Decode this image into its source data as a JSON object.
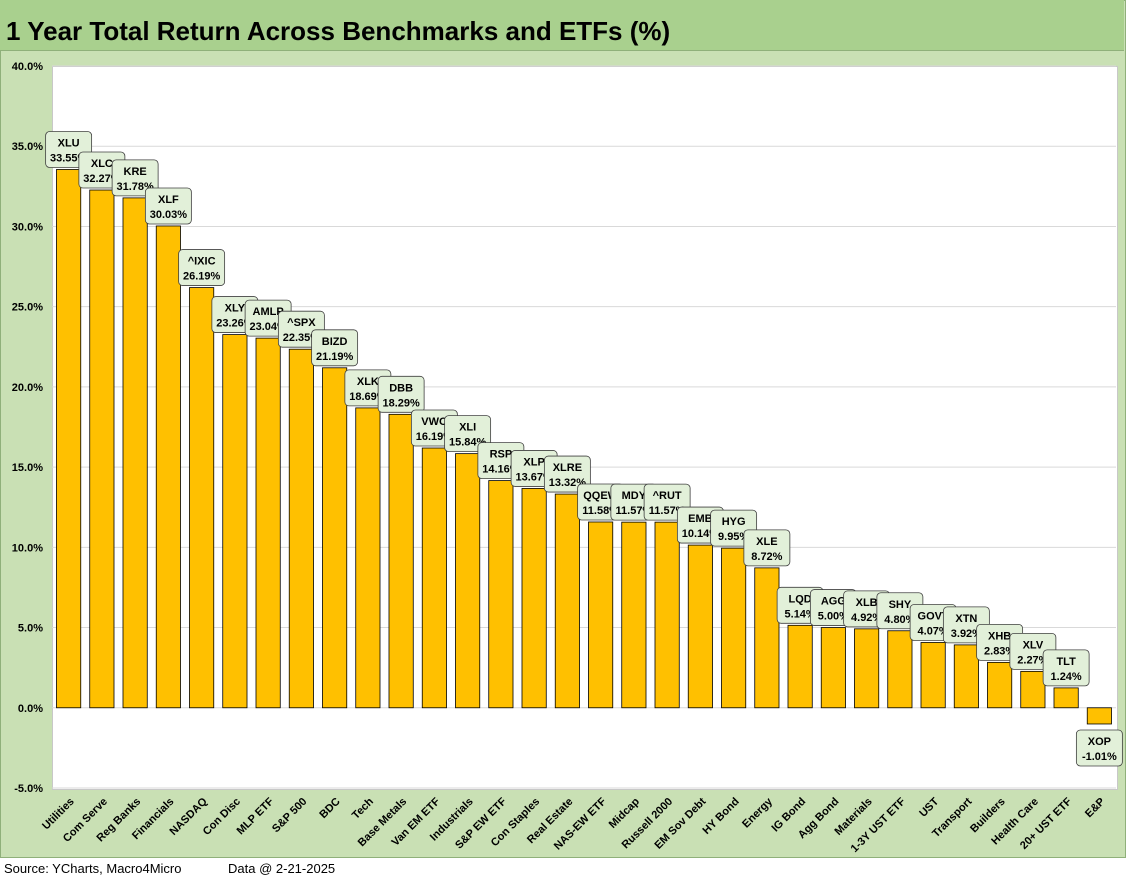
{
  "footer": {
    "source": "Source: YCharts, Macro4Micro",
    "data_date": "Data @ 2-21-2025"
  },
  "chart_data": {
    "type": "bar",
    "title": "1 Year Total Return Across Benchmarks and ETFs (%)",
    "xlabel": "",
    "ylabel": "",
    "ylim": [
      -5,
      40
    ],
    "yticks": [
      "-5.0%",
      "0.0%",
      "5.0%",
      "10.0%",
      "15.0%",
      "20.0%",
      "25.0%",
      "30.0%",
      "35.0%",
      "40.0%"
    ],
    "grid": true,
    "legend": "none",
    "bar_color": "#ffc000",
    "label_box_color": "#e2f0d9",
    "categories": [
      "Utilities",
      "Com Serve",
      "Reg Banks",
      "Financials",
      "NASDAQ",
      "Con Disc",
      "MLP ETF",
      "S&P 500",
      "BDC",
      "Tech",
      "Base Metals",
      "Van EM ETF",
      "Industrials",
      "S&P EW ETF",
      "Con Staples",
      "Real Estate",
      "NAS-EW ETF",
      "Midcap",
      "Russell 2000",
      "EM Sov Debt",
      "HY Bond",
      "Energy",
      "IG Bond",
      "Agg Bond",
      "Materials",
      "1-3Y UST ETF",
      "UST",
      "Transport",
      "Builders",
      "Health Care",
      "20+ UST ETF",
      "E&P"
    ],
    "tickers": [
      "XLU",
      "XLC",
      "KRE",
      "XLF",
      "^IXIC",
      "XLY",
      "AMLP",
      "^SPX",
      "BIZD",
      "XLK",
      "DBB",
      "VWO",
      "XLI",
      "RSP",
      "XLP",
      "XLRE",
      "QQEW",
      "MDY",
      "^RUT",
      "EMB",
      "HYG",
      "XLE",
      "LQD",
      "AGG",
      "XLB",
      "SHY",
      "GOVT",
      "XTN",
      "XHB",
      "XLV",
      "TLT",
      "XOP"
    ],
    "value_labels": [
      "33.55%",
      "32.27%",
      "31.78%",
      "30.03%",
      "26.19%",
      "23.26%",
      "23.04%",
      "22.35%",
      "21.19%",
      "18.69%",
      "18.29%",
      "16.19%",
      "15.84%",
      "14.16%",
      "13.67%",
      "13.32%",
      "11.58%",
      "11.57%",
      "11.57%",
      "10.14%",
      "9.95%",
      "8.72%",
      "5.14%",
      "5.00%",
      "4.92%",
      "4.80%",
      "4.07%",
      "3.92%",
      "2.83%",
      "2.27%",
      "1.24%",
      "-1.01%"
    ],
    "values": [
      33.55,
      32.27,
      31.78,
      30.03,
      26.19,
      23.26,
      23.04,
      22.35,
      21.19,
      18.69,
      18.29,
      16.19,
      15.84,
      14.16,
      13.67,
      13.32,
      11.58,
      11.57,
      11.57,
      10.14,
      9.95,
      8.72,
      5.14,
      5.0,
      4.92,
      4.8,
      4.07,
      3.92,
      2.83,
      2.27,
      1.24,
      -1.01
    ]
  }
}
